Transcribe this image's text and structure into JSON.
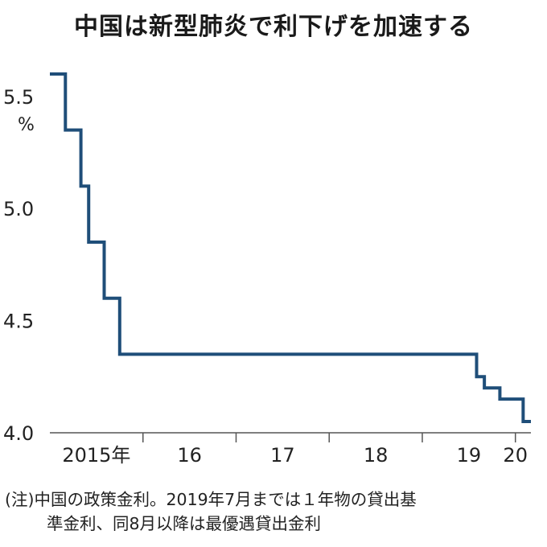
{
  "chart_data": {
    "type": "line",
    "step": true,
    "title": "中国は新型肺炎で利下げを加速する",
    "ylabel": "%",
    "ylim": [
      4.0,
      5.65
    ],
    "yticks": [
      "5.5",
      "5.0",
      "4.5",
      "4.0"
    ],
    "ytick_values": [
      5.5,
      5.0,
      4.5,
      4.0
    ],
    "xlim": [
      "2015-01",
      "2020-03"
    ],
    "xticks": [
      {
        "label": "2015年",
        "x": "2015-07"
      },
      {
        "label": "16",
        "x": "2016-07"
      },
      {
        "label": "17",
        "x": "2017-07"
      },
      {
        "label": "18",
        "x": "2018-07"
      },
      {
        "label": "19",
        "x": "2019-07"
      },
      {
        "label": "20",
        "x": "2020-01"
      }
    ],
    "color": "#1f4e79",
    "series": [
      {
        "name": "",
        "points": [
          {
            "x": "2015-01",
            "y": 5.6
          },
          {
            "x": "2015-03",
            "y": 5.35
          },
          {
            "x": "2015-05",
            "y": 5.1
          },
          {
            "x": "2015-06",
            "y": 4.85
          },
          {
            "x": "2015-08",
            "y": 4.6
          },
          {
            "x": "2015-10",
            "y": 4.35
          },
          {
            "x": "2019-08",
            "y": 4.25
          },
          {
            "x": "2019-09",
            "y": 4.2
          },
          {
            "x": "2019-11",
            "y": 4.15
          },
          {
            "x": "2020-02",
            "y": 4.05
          },
          {
            "x": "2020-03",
            "y": 4.05
          }
        ]
      }
    ]
  },
  "note": {
    "line1": "(注)中国の政策金利。2019年7月までは１年物の貸出基",
    "line2": "準金利、同8月以降は最優遇貸出金利"
  }
}
